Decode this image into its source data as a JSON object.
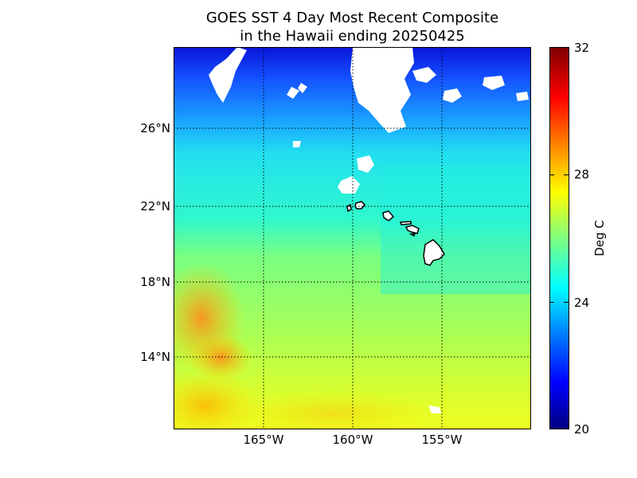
{
  "title": {
    "line1": "GOES SST 4 Day Most Recent Composite",
    "line2": "in the Hawaii ending 20250425"
  },
  "map": {
    "lat_labels": [
      "26°N",
      "22°N",
      "18°N",
      "14°N"
    ],
    "lon_labels": [
      "165°W",
      "160°W",
      "155°W"
    ],
    "colormap": [
      "#00007f",
      "#0000ff",
      "#007fff",
      "#00ffff",
      "#7fff7f",
      "#ffff00",
      "#ff7f00",
      "#ff0000",
      "#7f0000"
    ],
    "land_color": "#ffffff",
    "cloud_mask_color": "#ffffff",
    "gridlines": "dotted"
  },
  "colorbar": {
    "label": "Deg C",
    "ticks": [
      "32",
      "28",
      "24",
      "20"
    ],
    "min": 20,
    "max": 32
  }
}
